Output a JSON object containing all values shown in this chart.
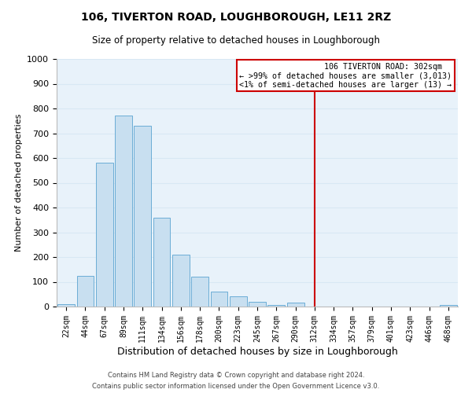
{
  "title": "106, TIVERTON ROAD, LOUGHBOROUGH, LE11 2RZ",
  "subtitle": "Size of property relative to detached houses in Loughborough",
  "xlabel": "Distribution of detached houses by size in Loughborough",
  "ylabel": "Number of detached properties",
  "footnote1": "Contains HM Land Registry data © Crown copyright and database right 2024.",
  "footnote2": "Contains public sector information licensed under the Open Government Licence v3.0.",
  "bar_labels": [
    "22sqm",
    "44sqm",
    "67sqm",
    "89sqm",
    "111sqm",
    "134sqm",
    "156sqm",
    "178sqm",
    "200sqm",
    "223sqm",
    "245sqm",
    "267sqm",
    "290sqm",
    "312sqm",
    "334sqm",
    "357sqm",
    "379sqm",
    "401sqm",
    "423sqm",
    "446sqm",
    "468sqm"
  ],
  "bar_values": [
    10,
    125,
    580,
    770,
    730,
    360,
    210,
    120,
    60,
    40,
    18,
    5,
    15,
    0,
    0,
    0,
    0,
    0,
    0,
    0,
    5
  ],
  "bar_color": "#c8dff0",
  "bar_edge_color": "#6badd6",
  "grid_color": "#d8e8f4",
  "background_color": "#e8f2fa",
  "marker_label_x": "312sqm",
  "marker_line_color": "#cc0000",
  "annotation_title": "106 TIVERTON ROAD: 302sqm",
  "annotation_line1": "← >99% of detached houses are smaller (3,013)",
  "annotation_line2": "<1% of semi-detached houses are larger (13) →",
  "annotation_box_color": "#cc0000",
  "ylim": [
    0,
    1000
  ],
  "yticks": [
    0,
    100,
    200,
    300,
    400,
    500,
    600,
    700,
    800,
    900,
    1000
  ],
  "title_fontsize": 10,
  "subtitle_fontsize": 8.5,
  "ylabel_fontsize": 8,
  "xlabel_fontsize": 9
}
